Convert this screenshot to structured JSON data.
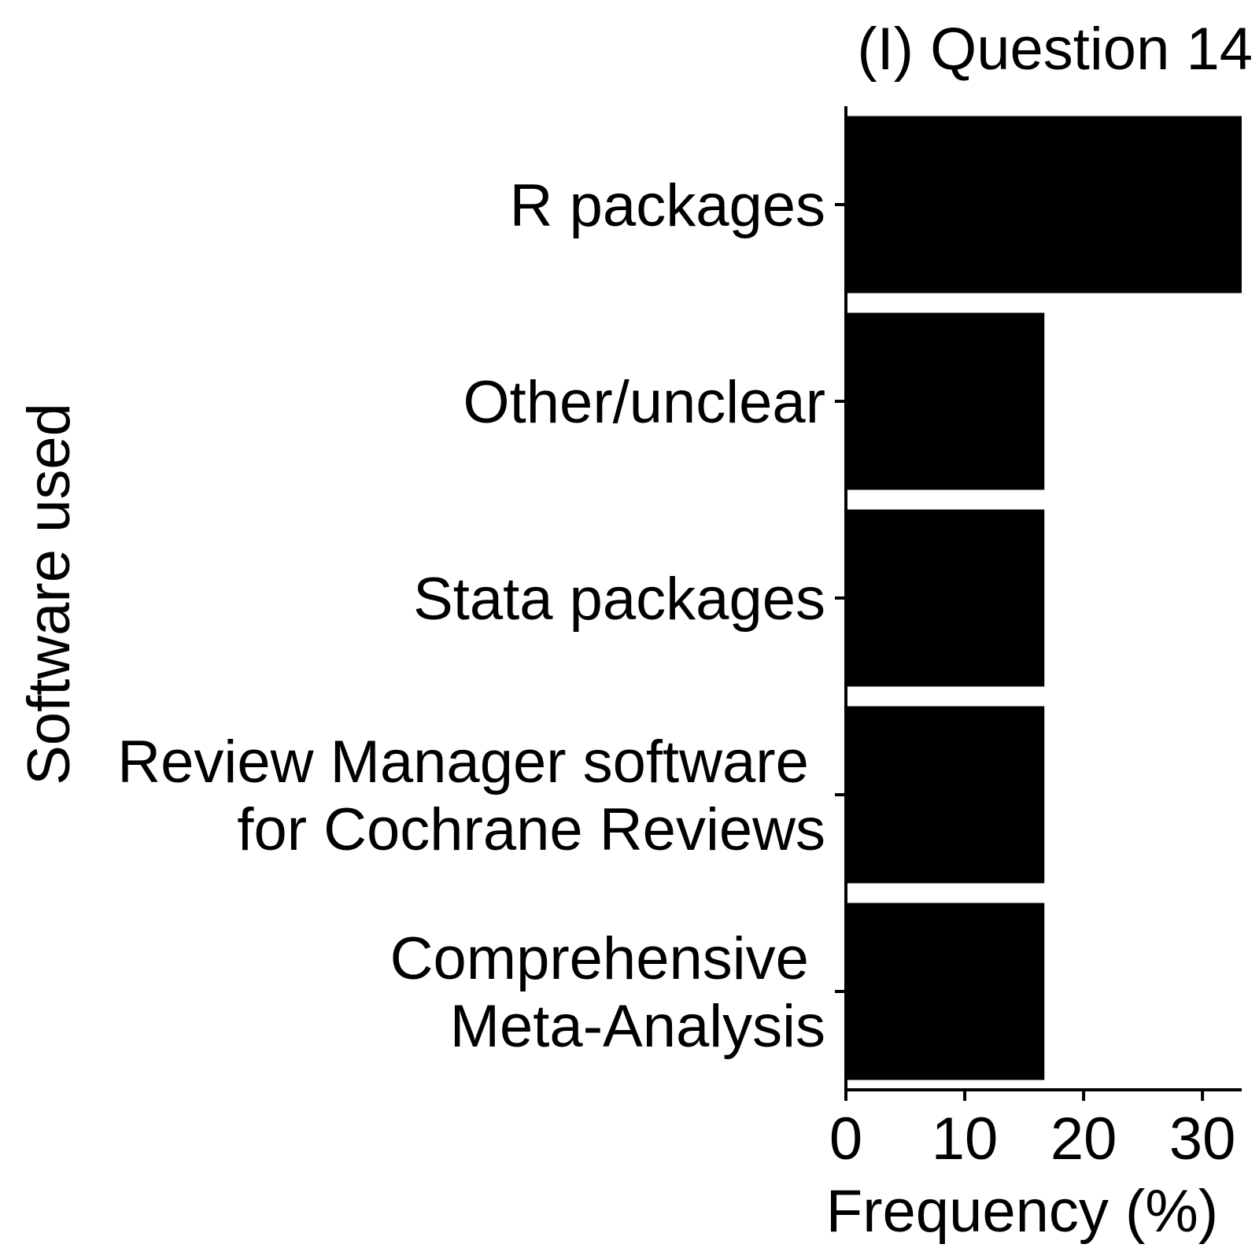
{
  "chart_data": {
    "type": "bar",
    "orientation": "horizontal",
    "title": "(I) Question 14",
    "xlabel": "Frequency (%)",
    "ylabel": "Software used",
    "categories": [
      [
        "R packages"
      ],
      [
        "Other/unclear"
      ],
      [
        "Stata packages"
      ],
      [
        "Review Manager software ",
        "for Cochrane Reviews"
      ],
      [
        "Comprehensive ",
        "Meta-Analysis"
      ]
    ],
    "values": [
      33.3,
      16.7,
      16.7,
      16.7,
      16.7
    ],
    "xlim": [
      0,
      33.3
    ],
    "xticks": [
      0,
      10,
      20,
      30
    ],
    "xtick_labels": [
      "0",
      "10",
      "20",
      "30"
    ],
    "bar_color": "#000000",
    "grid": false,
    "legend": "none"
  }
}
